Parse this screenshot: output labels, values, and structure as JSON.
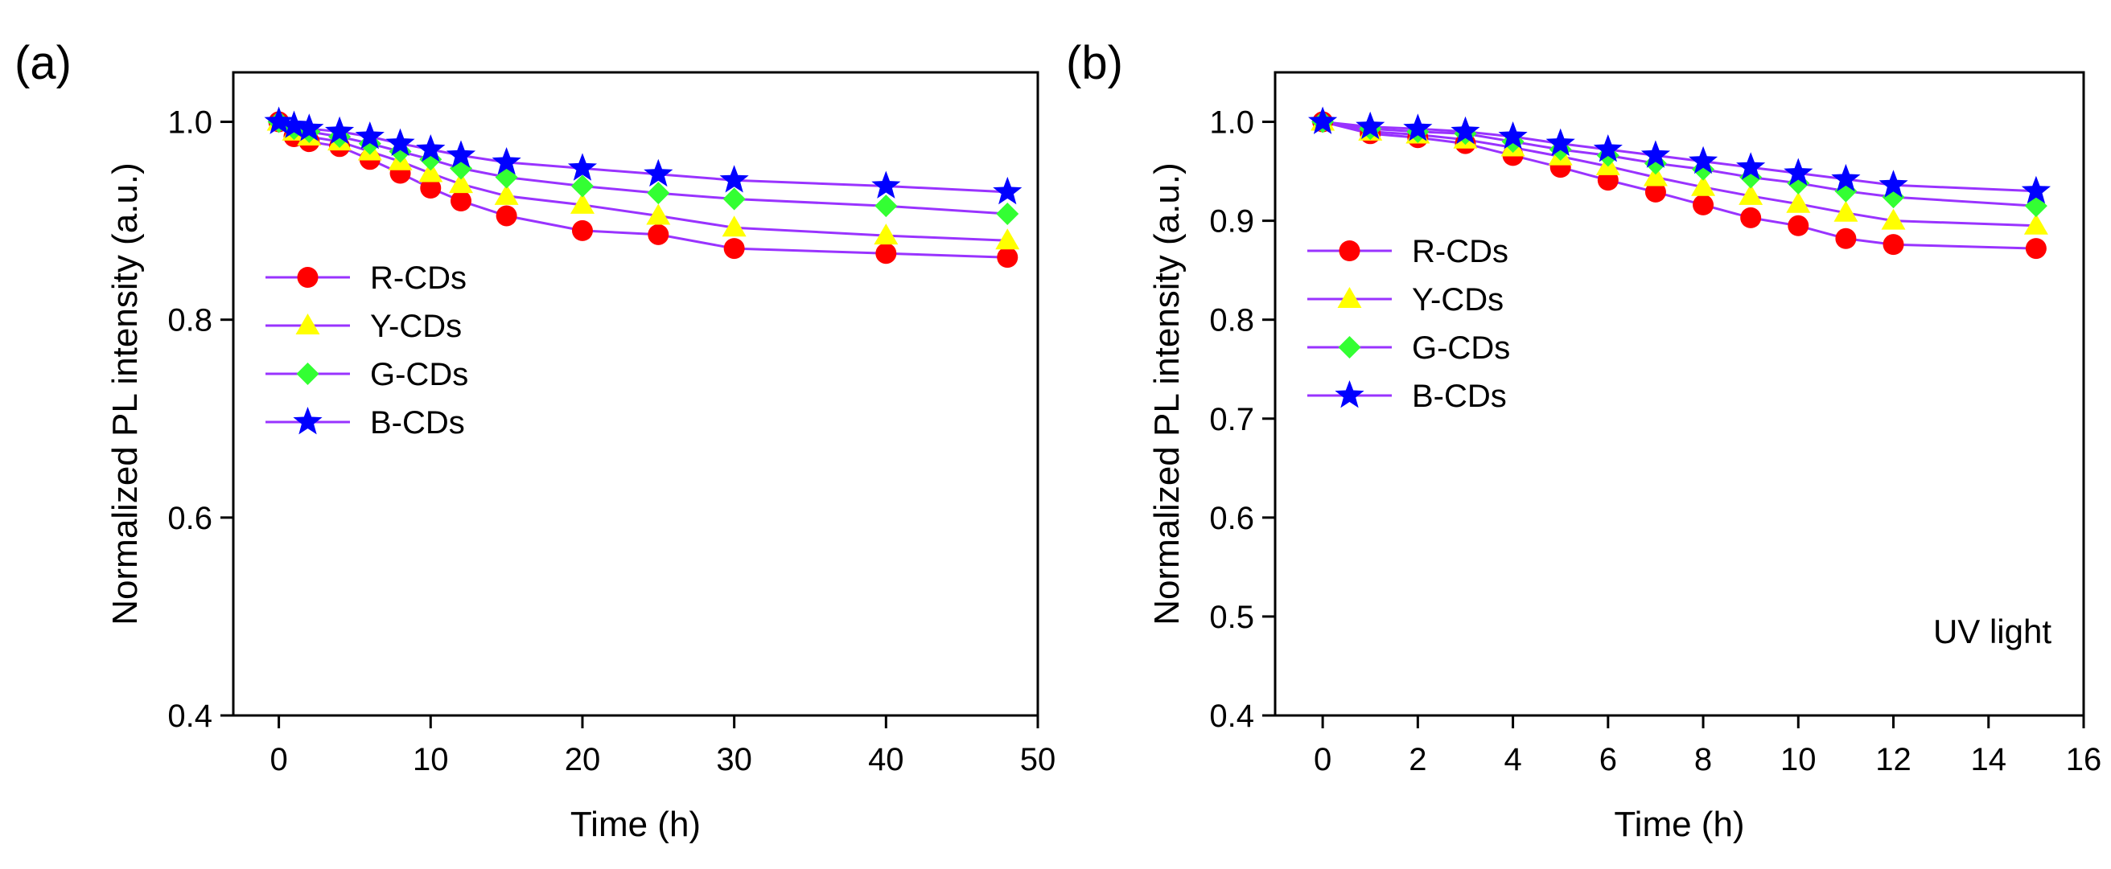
{
  "chart_data": [
    {
      "panel_label": "(a)",
      "type": "line",
      "xlabel": "Time (h)",
      "ylabel": "Normalized PL intensity (a.u.)",
      "xlim": [
        -3,
        50
      ],
      "ylim": [
        0.4,
        1.05
      ],
      "x_ticks": [
        0,
        10,
        20,
        30,
        40,
        50
      ],
      "x_tick_labels": [
        "0",
        "10",
        "20",
        "30",
        "40",
        "50"
      ],
      "y_ticks": [
        0.4,
        0.6,
        0.8,
        1.0
      ],
      "y_tick_labels": [
        "0.4",
        "0.6",
        "0.8",
        "1.0"
      ],
      "annotation": "",
      "legend_position": "center-left",
      "x": [
        0,
        1,
        2,
        4,
        6,
        8,
        10,
        12,
        15,
        20,
        25,
        30,
        40,
        48
      ],
      "series": [
        {
          "name": "R-CDs",
          "marker": "circle",
          "marker_color": "#ff0000",
          "line_color": "#9933ff",
          "values": [
            1.0,
            0.985,
            0.98,
            0.975,
            0.962,
            0.948,
            0.933,
            0.92,
            0.905,
            0.89,
            0.886,
            0.872,
            0.867,
            0.863
          ]
        },
        {
          "name": "Y-CDs",
          "marker": "triangle",
          "marker_color": "#ffff00",
          "line_color": "#9933ff",
          "values": [
            1.0,
            0.99,
            0.985,
            0.98,
            0.97,
            0.96,
            0.948,
            0.937,
            0.925,
            0.916,
            0.905,
            0.893,
            0.885,
            0.88
          ]
        },
        {
          "name": "G-CDs",
          "marker": "diamond",
          "marker_color": "#33ff33",
          "line_color": "#9933ff",
          "values": [
            1.0,
            0.993,
            0.99,
            0.985,
            0.978,
            0.97,
            0.962,
            0.953,
            0.944,
            0.935,
            0.928,
            0.922,
            0.915,
            0.907
          ]
        },
        {
          "name": "B-CDs",
          "marker": "star",
          "marker_color": "#0000ff",
          "line_color": "#9933ff",
          "values": [
            1.0,
            0.996,
            0.993,
            0.99,
            0.985,
            0.978,
            0.972,
            0.966,
            0.959,
            0.953,
            0.947,
            0.941,
            0.935,
            0.929
          ]
        }
      ]
    },
    {
      "panel_label": "(b)",
      "type": "line",
      "xlabel": "Time (h)",
      "ylabel": "Normalized PL intensity (a.u.)",
      "xlim": [
        -1,
        16
      ],
      "ylim": [
        0.4,
        1.05
      ],
      "x_ticks": [
        0,
        2,
        4,
        6,
        8,
        10,
        12,
        14,
        16
      ],
      "x_tick_labels": [
        "0",
        "2",
        "4",
        "6",
        "8",
        "10",
        "12",
        "14",
        "16"
      ],
      "y_ticks": [
        0.4,
        0.5,
        0.6,
        0.7,
        0.8,
        0.9,
        1.0
      ],
      "y_tick_labels": [
        "0.4",
        "0.5",
        "0.6",
        "0.7",
        "0.8",
        "0.9",
        "1.0"
      ],
      "annotation": "UV light",
      "legend_position": "upper-left",
      "x": [
        0,
        1,
        2,
        3,
        4,
        5,
        6,
        7,
        8,
        9,
        10,
        11,
        12,
        15
      ],
      "series": [
        {
          "name": "R-CDs",
          "marker": "circle",
          "marker_color": "#ff0000",
          "line_color": "#9933ff",
          "values": [
            1.0,
            0.988,
            0.984,
            0.978,
            0.966,
            0.954,
            0.941,
            0.929,
            0.916,
            0.903,
            0.895,
            0.882,
            0.876,
            0.872
          ]
        },
        {
          "name": "Y-CDs",
          "marker": "triangle",
          "marker_color": "#ffff00",
          "line_color": "#9933ff",
          "values": [
            1.0,
            0.99,
            0.987,
            0.982,
            0.974,
            0.965,
            0.955,
            0.944,
            0.934,
            0.925,
            0.917,
            0.908,
            0.9,
            0.895
          ]
        },
        {
          "name": "G-CDs",
          "marker": "diamond",
          "marker_color": "#33ff33",
          "line_color": "#9933ff",
          "values": [
            1.0,
            0.993,
            0.99,
            0.988,
            0.98,
            0.972,
            0.966,
            0.958,
            0.952,
            0.944,
            0.938,
            0.93,
            0.924,
            0.915
          ]
        },
        {
          "name": "B-CDs",
          "marker": "star",
          "marker_color": "#0000ff",
          "line_color": "#9933ff",
          "values": [
            1.0,
            0.995,
            0.993,
            0.99,
            0.985,
            0.978,
            0.972,
            0.966,
            0.96,
            0.954,
            0.948,
            0.942,
            0.936,
            0.93
          ]
        }
      ]
    }
  ]
}
